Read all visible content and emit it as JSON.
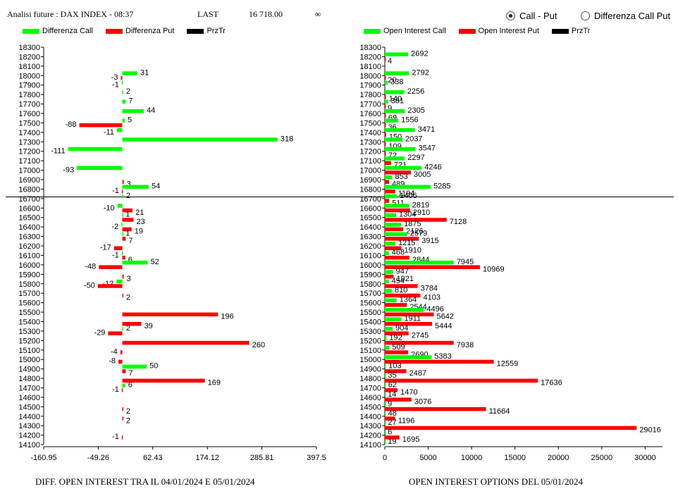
{
  "header": {
    "title": "Analisi future : DAX INDEX - 08:37",
    "last_label": "LAST",
    "last_value": "16 718.00",
    "infinity": "∞"
  },
  "view_options": {
    "call_put_label": "Call - Put",
    "diff_label": "Differenza Call Put",
    "selected": "Call - Put"
  },
  "colors": {
    "call": "#00ff00",
    "put": "#ff0000",
    "price": "#000000"
  },
  "chart_data": [
    {
      "type": "bar",
      "orientation": "horizontal",
      "title": "DIFF. OPEN INTEREST TRA IL 04/01/2024 E 05/01/2024",
      "legend": [
        "Differenza Call",
        "Differenza Put",
        "PrzTr"
      ],
      "x_ticks": [
        "-160.95",
        "-49.26",
        "62.43",
        "174.12",
        "285.81",
        "397.5"
      ],
      "xlim": [
        -160.95,
        397.5
      ],
      "price_line": 16718,
      "rows": [
        {
          "strike": 18300,
          "call": null,
          "put": null
        },
        {
          "strike": 18200,
          "call": null,
          "put": null
        },
        {
          "strike": 18100,
          "call": null,
          "put": null
        },
        {
          "strike": 18000,
          "call": 31,
          "put": -3
        },
        {
          "strike": 17900,
          "call": -1,
          "put": null
        },
        {
          "strike": 17800,
          "call": 2,
          "put": null
        },
        {
          "strike": 17700,
          "call": 7,
          "put": null
        },
        {
          "strike": 17600,
          "call": 44,
          "put": null
        },
        {
          "strike": 17500,
          "call": 5,
          "put": -88
        },
        {
          "strike": 17400,
          "call": -11,
          "put": null
        },
        {
          "strike": 17300,
          "call": 318,
          "put": null
        },
        {
          "strike": 17200,
          "call": -111,
          "put": null
        },
        {
          "strike": 17100,
          "call": null,
          "put": null
        },
        {
          "strike": 17000,
          "call": -93,
          "put": null
        },
        {
          "strike": 16900,
          "call": null,
          "put": 3
        },
        {
          "strike": 16800,
          "call": 54,
          "put": -1
        },
        {
          "strike": 16700,
          "call": 2,
          "put": null
        },
        {
          "strike": 16600,
          "call": -10,
          "put": 21
        },
        {
          "strike": 16500,
          "call": 1,
          "put": 23
        },
        {
          "strike": 16400,
          "call": -2,
          "put": 19
        },
        {
          "strike": 16300,
          "call": 1,
          "put": 7
        },
        {
          "strike": 16200,
          "call": null,
          "put": -17
        },
        {
          "strike": 16100,
          "call": -1,
          "put": 6
        },
        {
          "strike": 16000,
          "call": 52,
          "put": -48
        },
        {
          "strike": 15900,
          "call": null,
          "put": 3
        },
        {
          "strike": 15800,
          "call": -12,
          "put": -50
        },
        {
          "strike": 15700,
          "call": null,
          "put": 2
        },
        {
          "strike": 15600,
          "call": null,
          "put": null
        },
        {
          "strike": 15500,
          "call": null,
          "put": 196
        },
        {
          "strike": 15400,
          "call": null,
          "put": 39
        },
        {
          "strike": 15300,
          "call": 2,
          "put": -29
        },
        {
          "strike": 15200,
          "call": null,
          "put": 260
        },
        {
          "strike": 15100,
          "call": null,
          "put": -4
        },
        {
          "strike": 15000,
          "call": null,
          "put": -8
        },
        {
          "strike": 14900,
          "call": 50,
          "put": 7
        },
        {
          "strike": 14800,
          "call": null,
          "put": 169
        },
        {
          "strike": 14700,
          "call": 6,
          "put": -1
        },
        {
          "strike": 14600,
          "call": null,
          "put": null
        },
        {
          "strike": 14500,
          "call": null,
          "put": 2
        },
        {
          "strike": 14400,
          "call": null,
          "put": 2
        },
        {
          "strike": 14300,
          "call": null,
          "put": null
        },
        {
          "strike": 14200,
          "call": null,
          "put": -1
        },
        {
          "strike": 14100,
          "call": null,
          "put": null
        }
      ]
    },
    {
      "type": "bar",
      "orientation": "horizontal",
      "title": "OPEN INTEREST OPTIONS DEL 05/01/2024",
      "legend": [
        "Open Interest Call",
        "Open Interest Put",
        "PrzTr"
      ],
      "x_ticks": [
        "0",
        "5000",
        "10000",
        "15000",
        "20000",
        "25000",
        "30000"
      ],
      "xlim": [
        0,
        32000
      ],
      "price_line": 16718,
      "rows": [
        {
          "strike": 18300,
          "call": null,
          "put": null
        },
        {
          "strike": 18200,
          "call": 2692,
          "put": 4
        },
        {
          "strike": 18100,
          "call": null,
          "put": null
        },
        {
          "strike": 18000,
          "call": 2792,
          "put": 20
        },
        {
          "strike": 17900,
          "call": 338,
          "put": null
        },
        {
          "strike": 17800,
          "call": 2256,
          "put": 140
        },
        {
          "strike": 17700,
          "call": 381,
          "put": 9
        },
        {
          "strike": 17600,
          "call": 2305,
          "put": 69
        },
        {
          "strike": 17500,
          "call": 1556,
          "put": 36
        },
        {
          "strike": 17400,
          "call": 3471,
          "put": 150
        },
        {
          "strike": 17300,
          "call": 2037,
          "put": 109
        },
        {
          "strike": 17200,
          "call": 3547,
          "put": 72
        },
        {
          "strike": 17100,
          "call": 2297,
          "put": 721
        },
        {
          "strike": 17000,
          "call": 4246,
          "put": 3005
        },
        {
          "strike": 16900,
          "call": 853,
          "put": 489
        },
        {
          "strike": 16800,
          "call": 5285,
          "put": 1194
        },
        {
          "strike": 16700,
          "call": 1406,
          "put": 511
        },
        {
          "strike": 16600,
          "call": 2819,
          "put": 2910
        },
        {
          "strike": 16500,
          "call": 1304,
          "put": 7128
        },
        {
          "strike": 16400,
          "call": 1875,
          "put": 2126
        },
        {
          "strike": 16300,
          "call": 2579,
          "put": 3915
        },
        {
          "strike": 16200,
          "call": 1215,
          "put": 1910
        },
        {
          "strike": 16100,
          "call": 468,
          "put": 2844
        },
        {
          "strike": 16000,
          "call": 7945,
          "put": 10969
        },
        {
          "strike": 15900,
          "call": 947,
          "put": 1021
        },
        {
          "strike": 15800,
          "call": 454,
          "put": 3784
        },
        {
          "strike": 15700,
          "call": 810,
          "put": 4103
        },
        {
          "strike": 15600,
          "call": 1364,
          "put": 2544
        },
        {
          "strike": 15500,
          "call": 4496,
          "put": 5642
        },
        {
          "strike": 15400,
          "call": 1911,
          "put": 5444
        },
        {
          "strike": 15300,
          "call": 904,
          "put": 2745
        },
        {
          "strike": 15200,
          "call": 192,
          "put": 7938
        },
        {
          "strike": 15100,
          "call": 509,
          "put": 2690
        },
        {
          "strike": 15000,
          "call": 5383,
          "put": 12559
        },
        {
          "strike": 14900,
          "call": 103,
          "put": 2487
        },
        {
          "strike": 14800,
          "call": 35,
          "put": 17636
        },
        {
          "strike": 14700,
          "call": 62,
          "put": 1470
        },
        {
          "strike": 14600,
          "call": 14,
          "put": 3076
        },
        {
          "strike": 14500,
          "call": 9,
          "put": 11664
        },
        {
          "strike": 14400,
          "call": 48,
          "put": 1196
        },
        {
          "strike": 14300,
          "call": 27,
          "put": 29016
        },
        {
          "strike": 14200,
          "call": 6,
          "put": 1695
        },
        {
          "strike": 14100,
          "call": 19,
          "put": null
        }
      ]
    }
  ]
}
